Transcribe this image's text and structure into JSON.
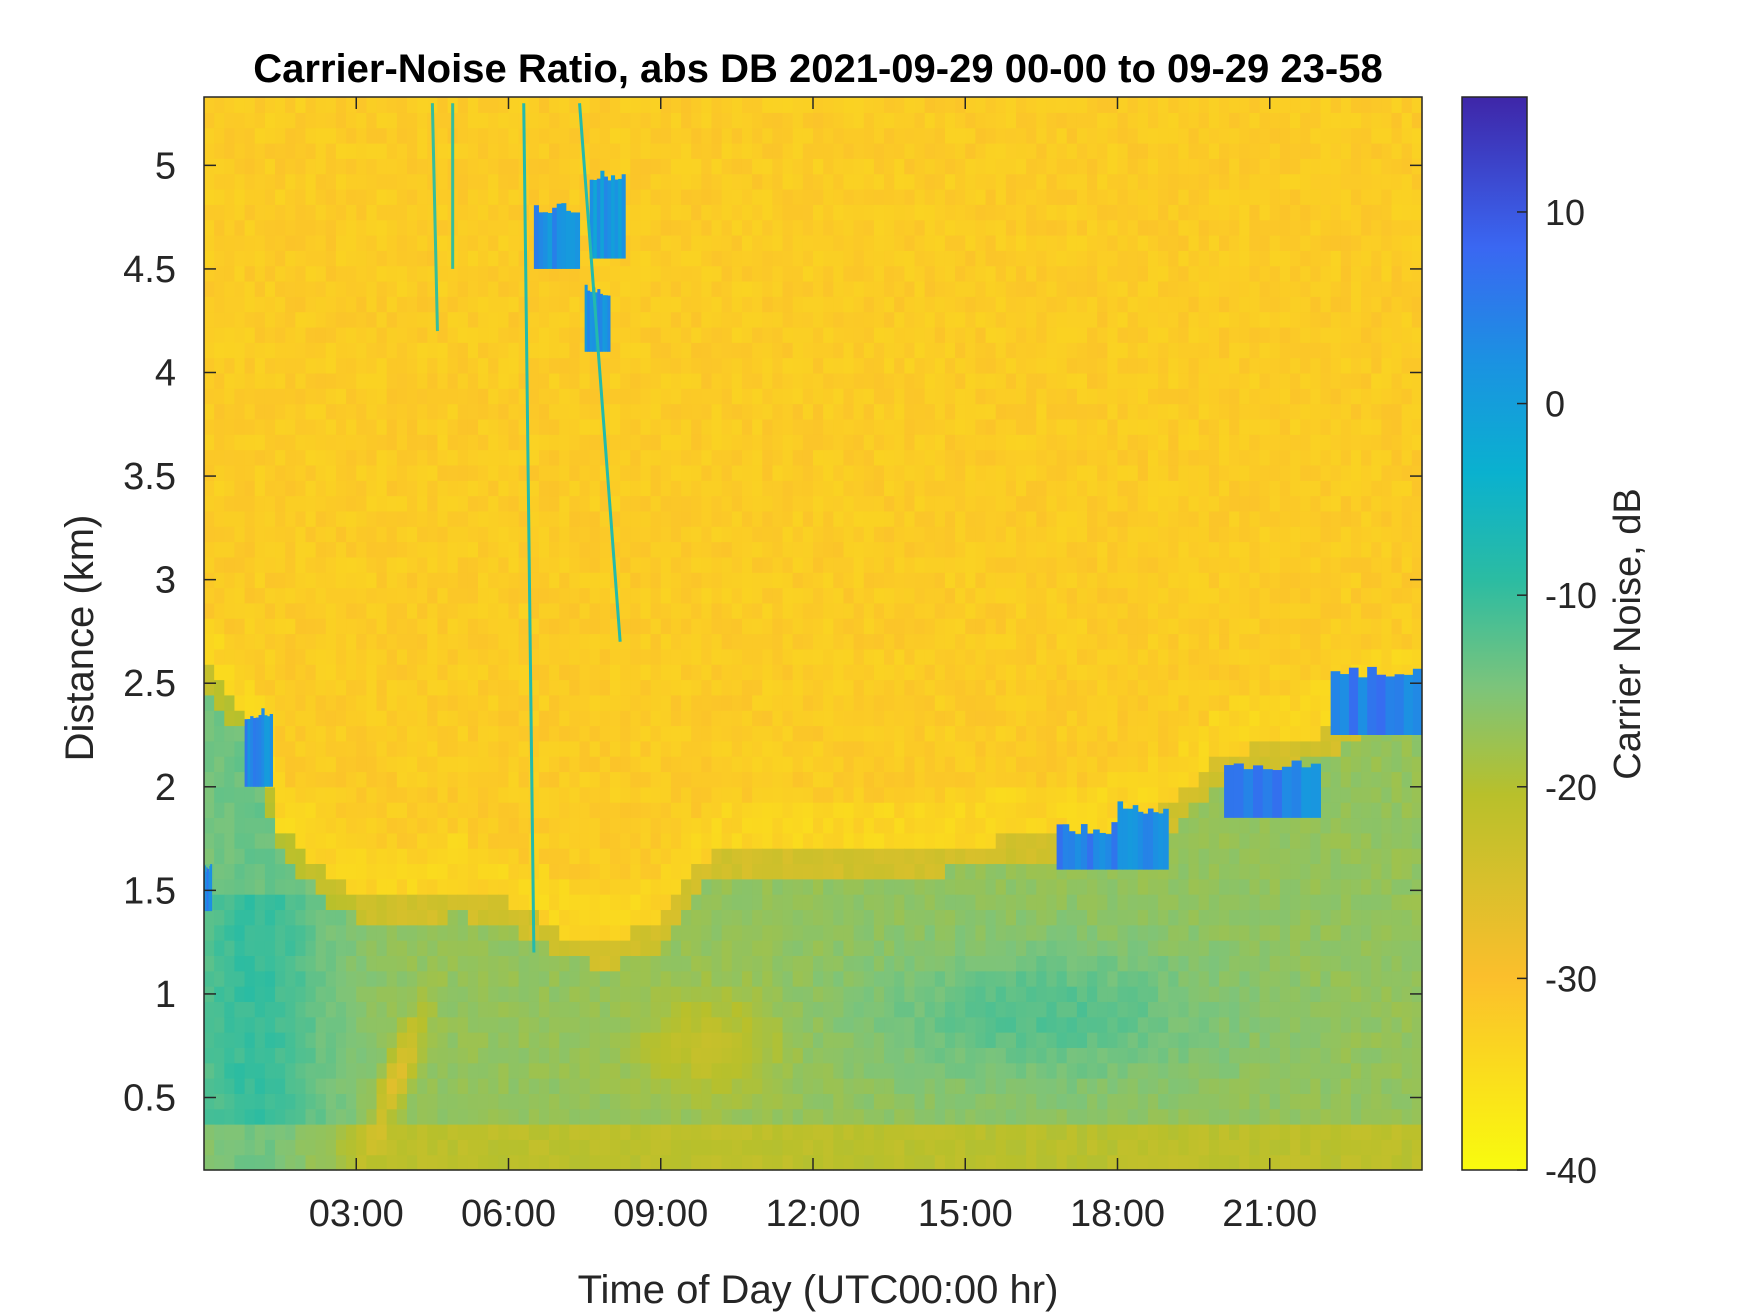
{
  "chart_data": {
    "type": "heatmap",
    "title": "Carrier-Noise Ratio, abs DB 2021-09-29 00-00 to 09-29 23-58",
    "xlabel": "Time of Day (UTC00:00 hr)",
    "ylabel": "Distance (km)",
    "colorbar_label": "Carrier Noise, dB",
    "xlim": [
      0,
      24
    ],
    "ylim": [
      0.15,
      5.33
    ],
    "clim": [
      -40,
      16
    ],
    "colormap": "parula-reversed",
    "x_ticks": [
      3,
      6,
      9,
      12,
      15,
      18,
      21
    ],
    "x_tick_labels": [
      "03:00",
      "06:00",
      "09:00",
      "12:00",
      "15:00",
      "18:00",
      "21:00"
    ],
    "y_ticks": [
      0.5,
      1,
      1.5,
      2,
      2.5,
      3,
      3.5,
      4,
      4.5,
      5
    ],
    "y_tick_labels": [
      "0.5",
      "1",
      "1.5",
      "2",
      "2.5",
      "3",
      "3.5",
      "4",
      "4.5",
      "5"
    ],
    "colorbar_ticks": [
      -40,
      -30,
      -20,
      -10,
      0,
      10
    ],
    "colorbar_tick_labels": [
      "-40",
      "-30",
      "-20",
      "-10",
      "0",
      "10"
    ],
    "background_level_db": -32,
    "boundary_layer_top_km": [
      [
        0,
        2.6
      ],
      [
        1,
        2.3
      ],
      [
        1.5,
        1.8
      ],
      [
        2.5,
        1.55
      ],
      [
        3.5,
        1.45
      ],
      [
        5,
        1.5
      ],
      [
        6,
        1.45
      ],
      [
        7,
        1.3
      ],
      [
        8,
        1.25
      ],
      [
        9,
        1.35
      ],
      [
        10,
        1.7
      ],
      [
        12,
        1.7
      ],
      [
        14,
        1.7
      ],
      [
        16,
        1.75
      ],
      [
        18,
        1.8
      ],
      [
        19,
        1.9
      ],
      [
        20,
        2.15
      ],
      [
        21,
        2.2
      ],
      [
        22,
        2.25
      ],
      [
        23,
        2.4
      ],
      [
        24,
        2.45
      ]
    ],
    "high_snr_patches": [
      {
        "t0": 0.0,
        "t1": 0.15,
        "z0": 1.4,
        "z1": 1.6,
        "db": 6
      },
      {
        "t0": 0.8,
        "t1": 1.35,
        "z0": 2.0,
        "z1": 2.35,
        "db": 6
      },
      {
        "t0": 6.5,
        "t1": 7.4,
        "z0": 4.5,
        "z1": 4.8,
        "db": 6
      },
      {
        "t0": 7.6,
        "t1": 8.3,
        "z0": 4.55,
        "z1": 4.95,
        "db": 4
      },
      {
        "t0": 7.5,
        "t1": 8.0,
        "z0": 4.1,
        "z1": 4.4,
        "db": 6
      },
      {
        "t0": 16.8,
        "t1": 18.0,
        "z0": 1.6,
        "z1": 1.8,
        "db": 7
      },
      {
        "t0": 18.0,
        "t1": 19.0,
        "z0": 1.6,
        "z1": 1.9,
        "db": 6
      },
      {
        "t0": 20.1,
        "t1": 22.0,
        "z0": 1.85,
        "z1": 2.1,
        "db": 7
      },
      {
        "t0": 22.2,
        "t1": 24.0,
        "z0": 2.25,
        "z1": 2.55,
        "db": 8
      }
    ],
    "thin_streaks": [
      {
        "t0": 6.5,
        "z0": 1.2,
        "t1": 6.3,
        "z1": 5.3,
        "db": -8
      },
      {
        "t0": 8.2,
        "z0": 2.7,
        "t1": 7.4,
        "z1": 5.3,
        "db": -8
      },
      {
        "t0": 4.6,
        "z0": 4.2,
        "t1": 4.5,
        "z1": 5.3,
        "db": -10
      },
      {
        "t0": 4.9,
        "z0": 4.5,
        "t1": 4.9,
        "z1": 5.3,
        "db": -10
      }
    ]
  }
}
